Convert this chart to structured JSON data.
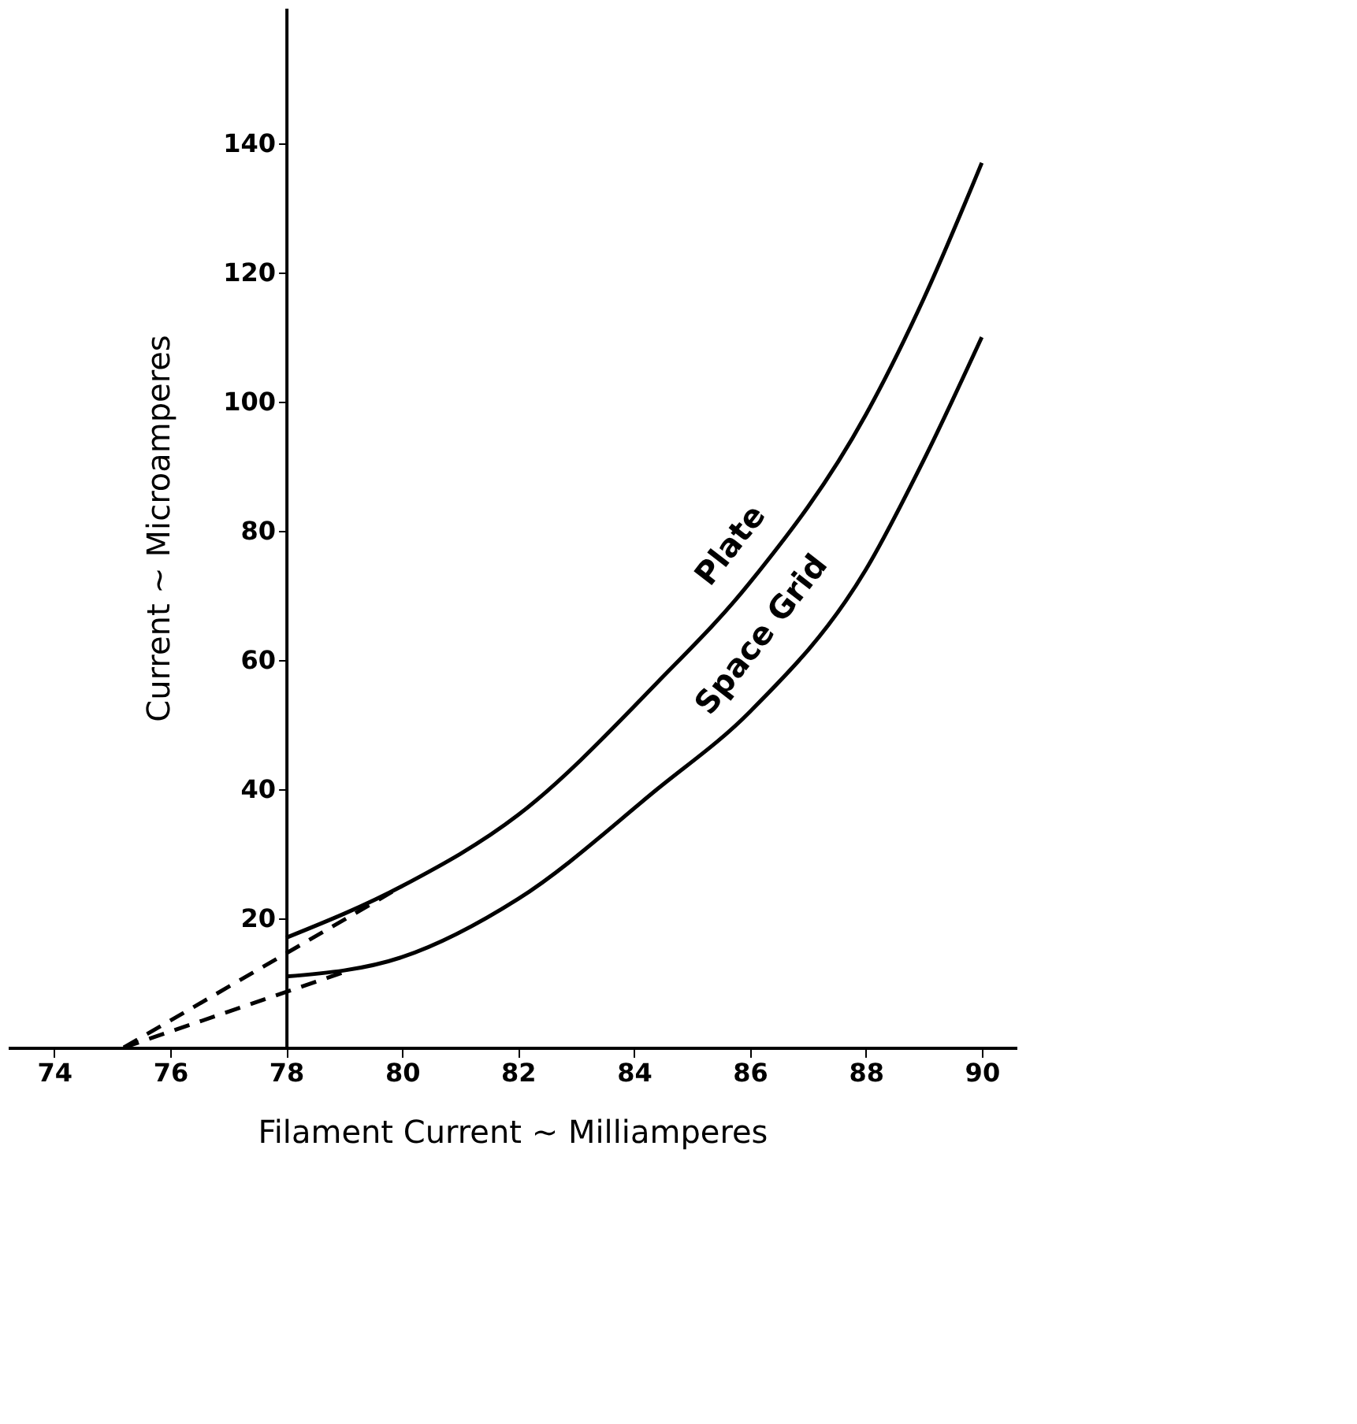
{
  "chart_data": {
    "type": "line",
    "xlabel": "Filament Current ~ Milliamperes",
    "ylabel": "Current ~ Microamperes",
    "xlim": [
      73.2,
      90.6
    ],
    "xticks": [
      74,
      76,
      78,
      80,
      82,
      84,
      86,
      88,
      90
    ],
    "ylim": [
      0,
      161
    ],
    "yticks": [
      20,
      40,
      60,
      80,
      100,
      120,
      140
    ],
    "grid": false,
    "line_style": "solid",
    "marker": "none",
    "series": [
      {
        "name": "Plate",
        "color": "#000000",
        "x": [
          78,
          80,
          82,
          84.4,
          86,
          88,
          89,
          90
        ],
        "values": [
          17,
          25,
          36,
          56.5,
          72,
          98,
          116,
          137
        ]
      },
      {
        "name": "Space Grid",
        "color": "#000000",
        "x": [
          78,
          80,
          82,
          84.4,
          86,
          88,
          89,
          90
        ],
        "values": [
          11,
          14,
          23,
          40,
          52,
          74,
          91,
          110
        ]
      },
      {
        "color": "#000000",
        "line_style": "dashed",
        "x": [
          75.2,
          80
        ],
        "values": [
          0,
          25
        ]
      },
      {
        "color": "#000000",
        "line_style": "dashed",
        "x": [
          75.2,
          79.1
        ],
        "values": [
          0,
          12
        ]
      }
    ]
  }
}
